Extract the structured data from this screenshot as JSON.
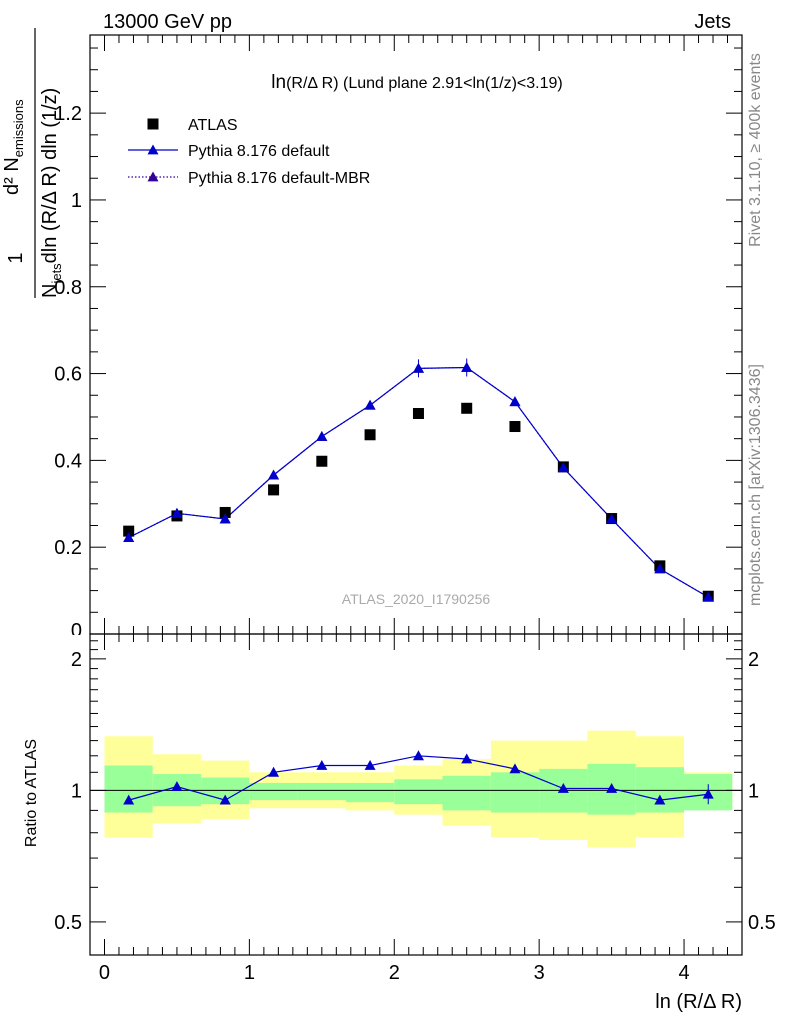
{
  "header": {
    "left": "13000 GeV pp",
    "right": "Jets"
  },
  "chart_data": {
    "type": "scatter",
    "title_main": "ln",
    "title_sub": "(R/Δ R)",
    "title_rest": " (Lund plane 2.91<ln(1/z)<3.19)",
    "ylabel_one": "1",
    "ylabel_num": "d² N",
    "ylabel_num_sub": "emissions",
    "ylabel_den": "N",
    "ylabel_den_sub": "jets",
    "ylabel_den_rest": "dln (R/Δ R) dln (1/z)",
    "xlabel": "ln (R/Δ R)",
    "ratio_ylabel": "Ratio to ATLAS",
    "watermark": "ATLAS_2020_I1790256",
    "side_text_top": "Rivet 3.1.10, ≥ 400k events",
    "side_text_bottom": "mcplots.cern.ch [arXiv:1306.3436]",
    "xlim": [
      -0.1,
      4.4
    ],
    "ylim": [
      0,
      1.38
    ],
    "ratio_ylim": [
      0.42,
      2.28
    ],
    "x_ticks": [
      "0",
      "1",
      "2",
      "3",
      "4"
    ],
    "y_ticks": [
      "0.2",
      "0.4",
      "0.6",
      "0.8",
      "1",
      "1.2"
    ],
    "y_tick_bottom": "0",
    "ratio_y_ticks": [
      "0.5",
      "1",
      "2"
    ],
    "legend": [
      {
        "label": "ATLAS",
        "marker": "square"
      },
      {
        "label": "Pythia 8.176 default",
        "marker": "triangle",
        "line": "solid"
      },
      {
        "label": "Pythia 8.176 default-MBR",
        "marker": "triangle",
        "line": "dotted"
      }
    ],
    "bin_edges": [
      0,
      0.333,
      0.667,
      1.0,
      1.333,
      1.667,
      2.0,
      2.333,
      2.667,
      3.0,
      3.333,
      3.667,
      4.0,
      4.333
    ],
    "x": [
      0.167,
      0.5,
      0.833,
      1.167,
      1.5,
      1.833,
      2.167,
      2.5,
      2.833,
      3.167,
      3.5,
      3.833,
      4.167
    ],
    "series": [
      {
        "name": "ATLAS",
        "values": [
          0.237,
          0.272,
          0.28,
          0.332,
          0.398,
          0.459,
          0.508,
          0.52,
          0.478,
          0.385,
          0.266,
          0.157,
          0.087
        ]
      },
      {
        "name": "Pythia 8.176 default",
        "values": [
          0.222,
          0.278,
          0.265,
          0.366,
          0.455,
          0.527,
          0.612,
          0.614,
          0.535,
          0.383,
          0.265,
          0.15,
          0.085
        ]
      },
      {
        "name": "Pythia 8.176 default-MBR",
        "values": [
          0.222,
          0.278,
          0.265,
          0.366,
          0.455,
          0.527,
          0.612,
          0.614,
          0.535,
          0.383,
          0.265,
          0.15,
          0.085
        ]
      }
    ],
    "ratio": [
      0.95,
      1.02,
      0.95,
      1.1,
      1.14,
      1.14,
      1.2,
      1.18,
      1.12,
      1.01,
      1.01,
      0.95,
      0.98
    ],
    "band_green": [
      [
        0.89,
        1.14
      ],
      [
        0.92,
        1.09
      ],
      [
        0.93,
        1.07
      ],
      [
        0.95,
        1.04
      ],
      [
        0.95,
        1.04
      ],
      [
        0.94,
        1.04
      ],
      [
        0.93,
        1.06
      ],
      [
        0.9,
        1.08
      ],
      [
        0.89,
        1.1
      ],
      [
        0.89,
        1.12
      ],
      [
        0.88,
        1.15
      ],
      [
        0.89,
        1.13
      ],
      [
        0.9,
        1.09
      ]
    ],
    "band_yellow": [
      [
        0.78,
        1.33
      ],
      [
        0.84,
        1.21
      ],
      [
        0.86,
        1.17
      ],
      [
        0.91,
        1.1
      ],
      [
        0.91,
        1.1
      ],
      [
        0.9,
        1.1
      ],
      [
        0.88,
        1.14
      ],
      [
        0.83,
        1.18
      ],
      [
        0.78,
        1.3
      ],
      [
        0.77,
        1.3
      ],
      [
        0.74,
        1.37
      ],
      [
        0.78,
        1.33
      ],
      [
        0.91,
        1.1
      ]
    ],
    "colors": {
      "data": "#000000",
      "mc": "#0000cc",
      "mbr": "#330099",
      "green": "#99ff99",
      "yellow": "#ffff99"
    }
  }
}
